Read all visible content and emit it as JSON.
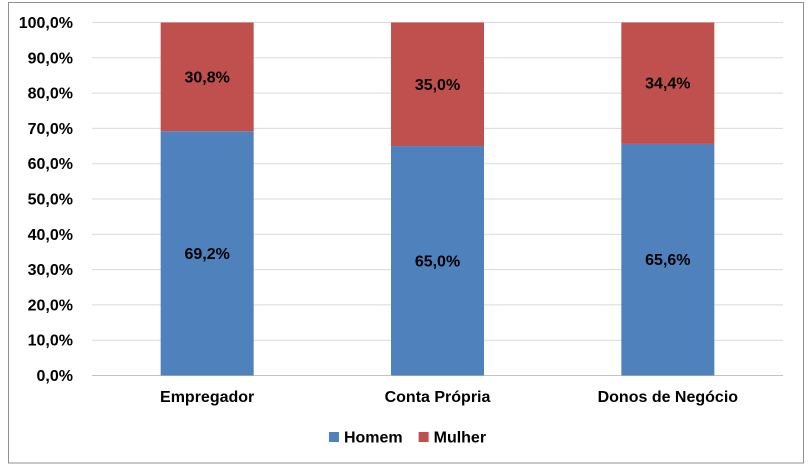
{
  "chart_data": {
    "type": "bar",
    "stacked": true,
    "title": "",
    "xlabel": "",
    "ylabel": "",
    "categories": [
      "Empregador",
      "Conta Própria",
      "Donos de Negócio"
    ],
    "series": [
      {
        "name": "Homem",
        "color": "#4F81BD",
        "values": [
          69.2,
          65.0,
          65.6
        ],
        "labels": [
          "69,2%",
          "65,0%",
          "65,6%"
        ]
      },
      {
        "name": "Mulher",
        "color": "#C0504D",
        "values": [
          30.8,
          35.0,
          34.4
        ],
        "labels": [
          "30,8%",
          "35,0%",
          "34,4%"
        ]
      }
    ],
    "ylim": [
      0,
      100
    ],
    "y_tick_values": [
      0,
      10,
      20,
      30,
      40,
      50,
      60,
      70,
      80,
      90,
      100
    ],
    "y_tick_labels": [
      "0,0%",
      "10,0%",
      "20,0%",
      "30,0%",
      "40,0%",
      "50,0%",
      "60,0%",
      "70,0%",
      "80,0%",
      "90,0%",
      "100,0%"
    ],
    "grid": true,
    "legend_position": "bottom"
  },
  "colors": {
    "background": "#FFFFFF",
    "frame_border": "#919191",
    "gridline": "#D9D9D9",
    "axis_line": "#C3C3C3",
    "text": "#000000"
  }
}
